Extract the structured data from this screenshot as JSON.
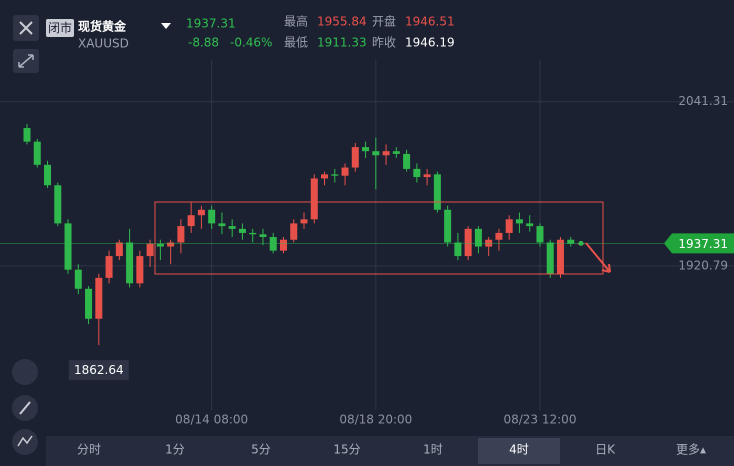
{
  "header": {
    "status": "闭市",
    "name": "现货黄金",
    "symbol": "XAUUSD",
    "change": "-8.88",
    "change_pct": "-0.46%",
    "high_label": "最高",
    "high": "1955.84",
    "open_label": "开盘",
    "open": "1946.51",
    "low_label": "最低",
    "low": "1911.33",
    "prev_label": "昨收",
    "prev": "1946.19"
  },
  "tabs": [
    "分时",
    "1分",
    "5分",
    "15分",
    "1时",
    "4时",
    "日K",
    "更多▴"
  ],
  "chart_data": {
    "type": "candlestick",
    "up_color": "#e8514a",
    "down_color": "#2fb84c",
    "last_price": 1937.31,
    "categories": [
      null,
      null,
      null,
      null,
      null,
      null,
      null,
      null,
      null,
      null,
      null,
      null,
      null,
      null,
      null,
      null,
      null,
      null,
      "08/14 08:00",
      null,
      null,
      null,
      null,
      null,
      null,
      null,
      null,
      null,
      null,
      null,
      null,
      null,
      null,
      null,
      "08/18 20:00",
      null,
      null,
      null,
      null,
      null,
      null,
      null,
      null,
      null,
      null,
      null,
      null,
      null,
      null,
      null,
      "08/23 12:00",
      null,
      null,
      null,
      null
    ],
    "open": [
      2022,
      2012,
      1995,
      1980,
      1952,
      1918,
      1904,
      1882,
      1912,
      1928,
      1938,
      1908,
      1928,
      1937,
      1935,
      1938,
      1950,
      1958,
      1962,
      1952,
      1950,
      1948,
      1945,
      1944,
      1942,
      1932,
      1940,
      1952,
      1955,
      1985,
      1988,
      1987,
      1993,
      2008,
      2005,
      2002,
      2005,
      2003,
      1992,
      1986,
      1988,
      1962,
      1938,
      1928,
      1948,
      1935,
      1940,
      1945,
      1955,
      1952,
      1950,
      1938,
      1915,
      1940,
      1937
    ],
    "high": [
      2025,
      2014,
      1998,
      1982,
      1955,
      1922,
      1906,
      1915,
      1932,
      1940,
      1948,
      1932,
      1940,
      1940,
      1940,
      1955,
      1968,
      1965,
      1965,
      1960,
      1955,
      1952,
      1948,
      1948,
      1945,
      1942,
      1955,
      1960,
      1988,
      1990,
      1992,
      1996,
      2011,
      2012,
      2015,
      2010,
      2008,
      2006,
      1996,
      1992,
      1990,
      1965,
      1945,
      1950,
      1950,
      1942,
      1948,
      1958,
      1960,
      1958,
      1952,
      1940,
      1942,
      1942,
      1939
    ],
    "low": [
      2010,
      1993,
      1978,
      1950,
      1915,
      1900,
      1878,
      1862.64,
      1908,
      1925,
      1905,
      1905,
      1920,
      1925,
      1922,
      1930,
      1945,
      1948,
      1948,
      1944,
      1942,
      1940,
      1938,
      1936,
      1930,
      1930,
      1938,
      1948,
      1952,
      1980,
      1982,
      1980,
      1990,
      2000,
      1977,
      1995,
      2000,
      1990,
      1982,
      1980,
      1960,
      1935,
      1925,
      1925,
      1930,
      1928,
      1932,
      1940,
      1945,
      1946,
      1935,
      1912,
      1912,
      1935,
      1936
    ],
    "close": [
      2012,
      1995,
      1980,
      1952,
      1918,
      1904,
      1882,
      1912,
      1928,
      1938,
      1908,
      1928,
      1937,
      1935,
      1938,
      1950,
      1958,
      1962,
      1952,
      1950,
      1948,
      1945,
      1944,
      1942,
      1932,
      1940,
      1952,
      1955,
      1985,
      1988,
      1987,
      1993,
      2008,
      2005,
      2002,
      2005,
      2003,
      1992,
      1986,
      1988,
      1962,
      1938,
      1928,
      1948,
      1935,
      1940,
      1945,
      1955,
      1952,
      1950,
      1938,
      1915,
      1940,
      1937,
      1937.31
    ],
    "ylim": [
      1815,
      2116
    ],
    "yticks": [
      2041.31,
      1920.79
    ]
  }
}
